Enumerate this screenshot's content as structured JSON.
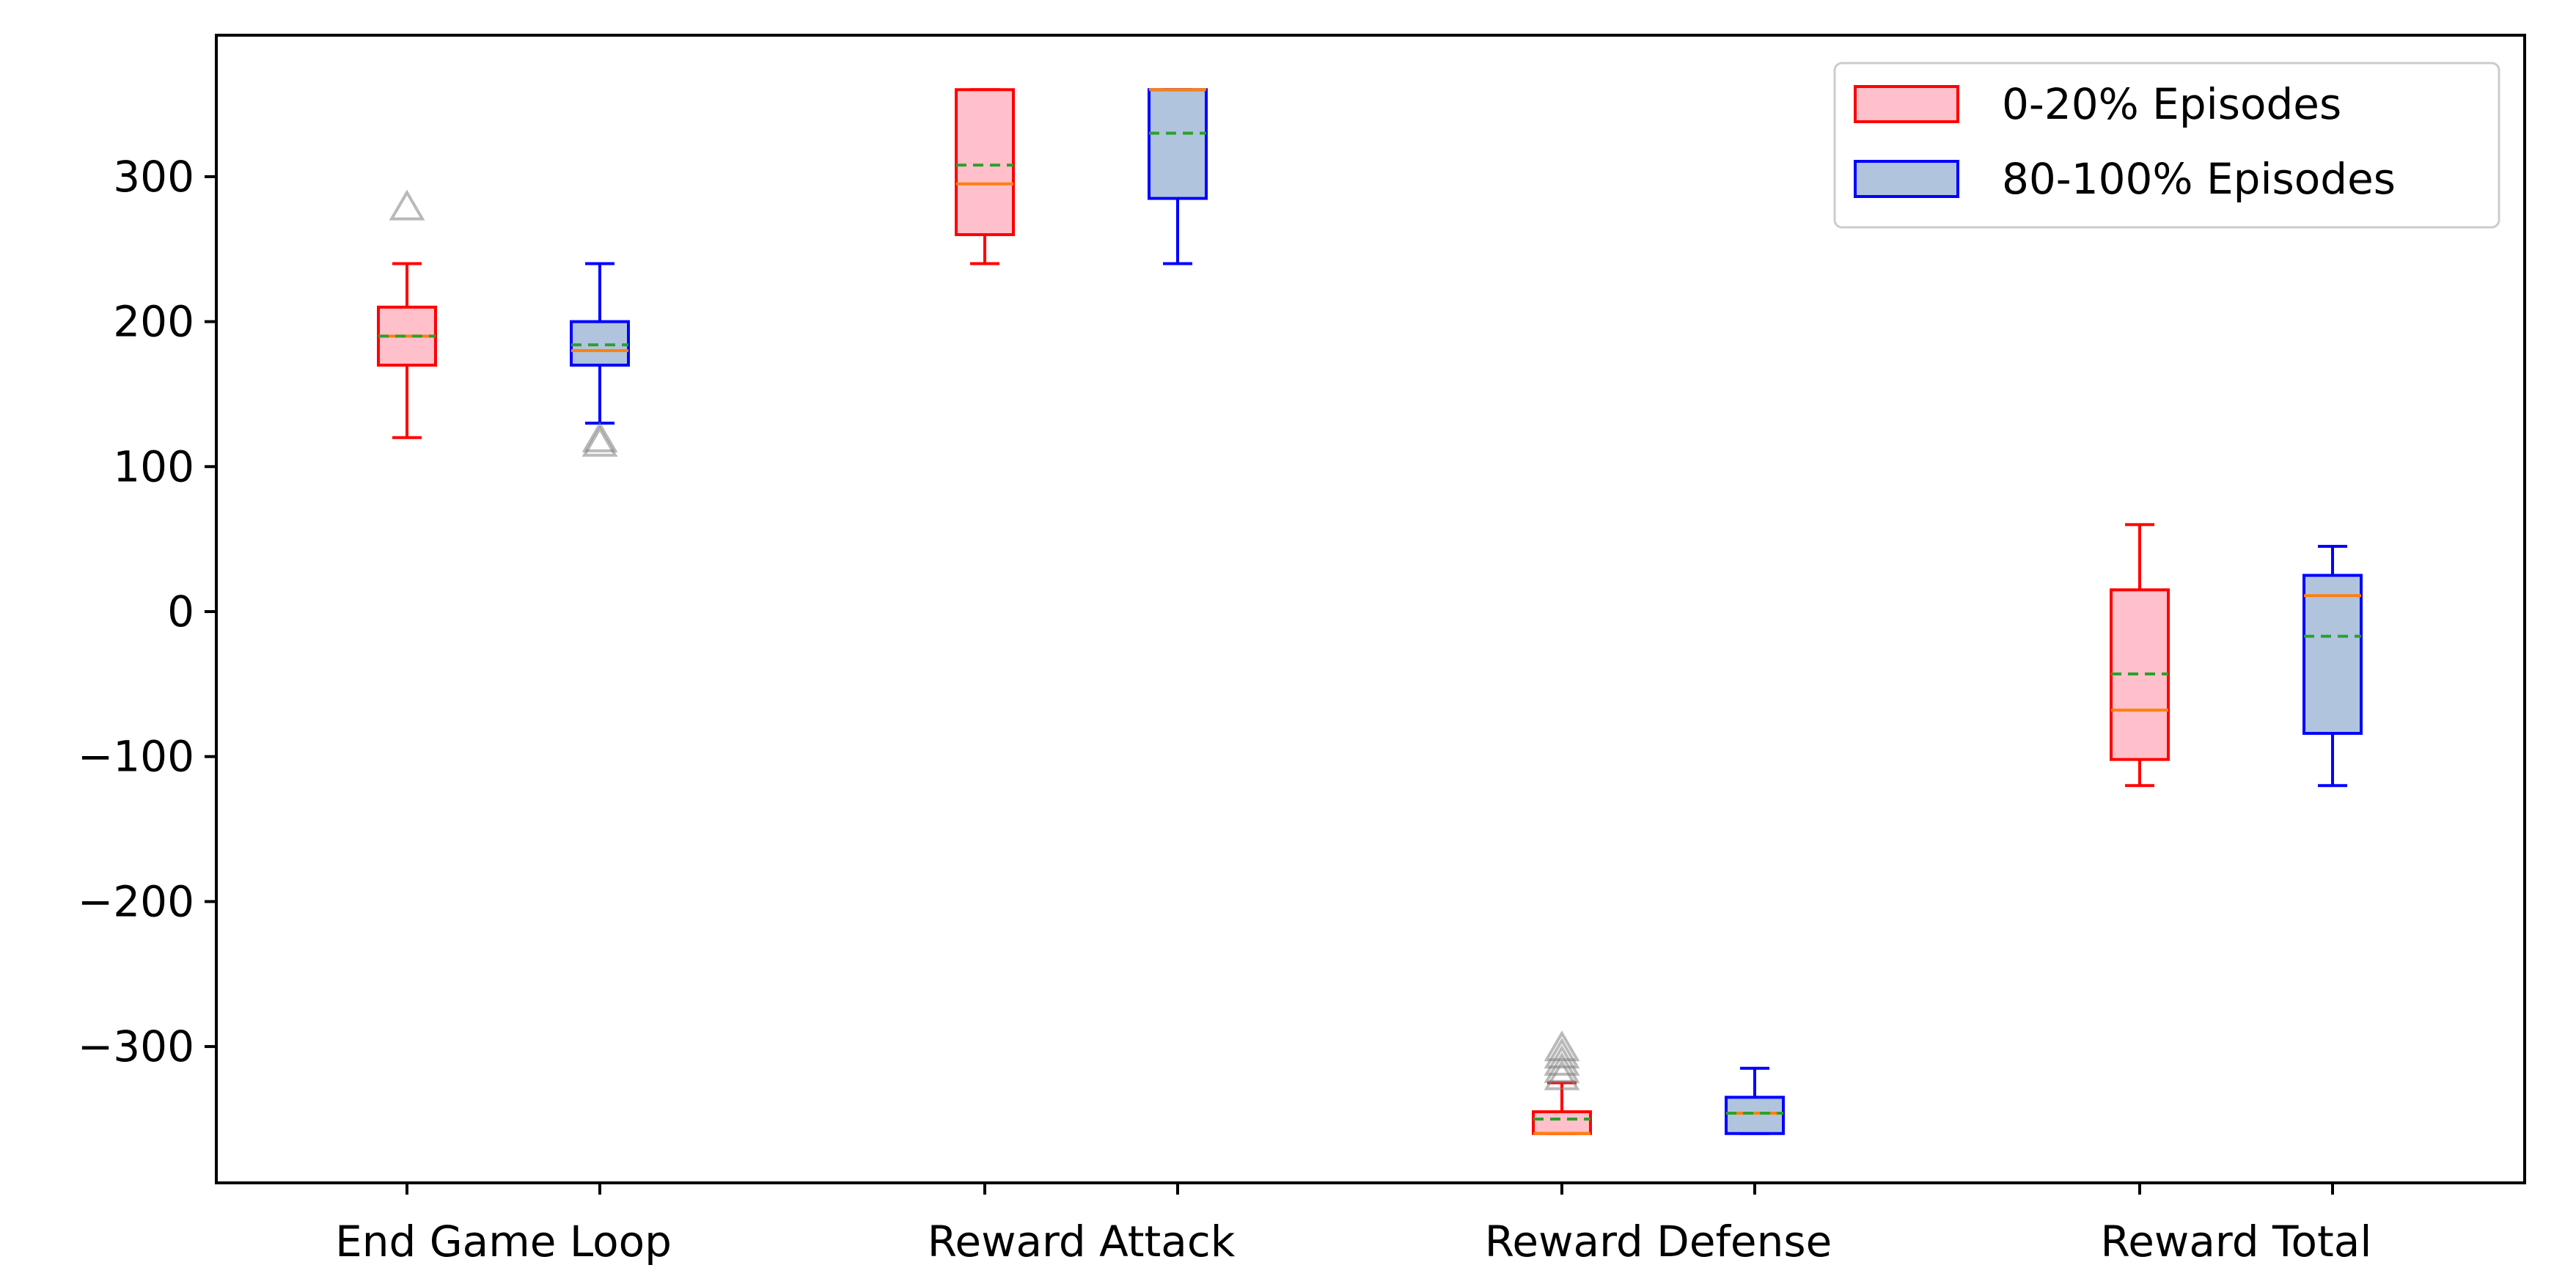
{
  "chart_data": {
    "type": "box",
    "title": "",
    "xlabel": "",
    "ylabel": "",
    "ylim": [
      -395,
      395
    ],
    "yticks": [
      -300,
      -200,
      -100,
      0,
      100,
      200,
      300
    ],
    "ytick_labels": [
      "−300",
      "−200",
      "−100",
      "0",
      "100",
      "200",
      "300"
    ],
    "grid": false,
    "legend_position": "top-right",
    "categories": [
      "End Game Loop",
      "Reward Attack",
      "Reward Defense",
      "Reward Total"
    ],
    "series": [
      {
        "name": "0-20% Episodes",
        "edge_color": "#ff0000",
        "fill_color": "#ffc0cb",
        "boxes": [
          {
            "whisker_low": 120,
            "q1": 170,
            "median": 190,
            "mean": 190,
            "q3": 210,
            "whisker_high": 240,
            "outliers": [
              280
            ]
          },
          {
            "whisker_low": 240,
            "q1": 260,
            "median": 295,
            "mean": 308,
            "q3": 360,
            "whisker_high": 360,
            "outliers": []
          },
          {
            "whisker_low": -360,
            "q1": -360,
            "median": -360,
            "mean": -350,
            "q3": -345,
            "whisker_high": -325,
            "outliers": [
              -300,
              -305,
              -310,
              -315,
              -320
            ]
          },
          {
            "whisker_low": -120,
            "q1": -102,
            "median": -68,
            "mean": -43,
            "q3": 15,
            "whisker_high": 60,
            "outliers": []
          }
        ]
      },
      {
        "name": "80-100% Episodes",
        "edge_color": "#0000ff",
        "fill_color": "#b0c4de",
        "boxes": [
          {
            "whisker_low": 130,
            "q1": 170,
            "median": 180,
            "mean": 184,
            "q3": 200,
            "whisker_high": 240,
            "outliers": [
              120,
              117
            ]
          },
          {
            "whisker_low": 240,
            "q1": 285,
            "median": 360,
            "mean": 330,
            "q3": 360,
            "whisker_high": 360,
            "outliers": []
          },
          {
            "whisker_low": -360,
            "q1": -360,
            "median": -346,
            "mean": -346,
            "q3": -335,
            "whisker_high": -315,
            "outliers": []
          },
          {
            "whisker_low": -120,
            "q1": -84,
            "median": 11,
            "mean": -17,
            "q3": 25,
            "whisker_high": 45,
            "outliers": []
          }
        ]
      }
    ],
    "median_color": "#ff7f0e",
    "mean_color": "#2ca02c",
    "outlier_color": "#808080"
  }
}
